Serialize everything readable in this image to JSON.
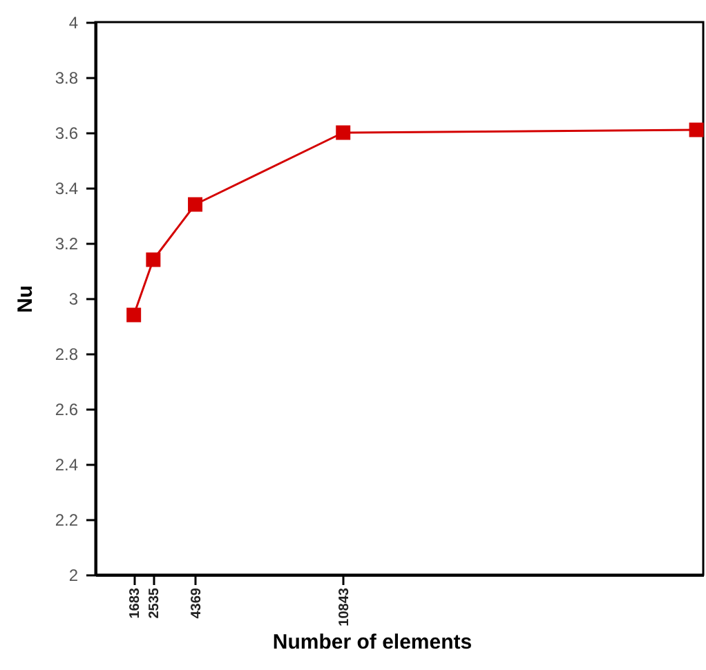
{
  "chart_data": {
    "type": "line",
    "xlabel": "Number of elements",
    "ylabel": "Nu",
    "x": [
      1683,
      2535,
      4369,
      10843,
      26300
    ],
    "series": [
      {
        "color": "#d40000",
        "values": [
          2.94,
          3.14,
          3.34,
          3.6,
          3.61
        ]
      }
    ],
    "xlim": [
      0,
      26600
    ],
    "xticks": [
      1683,
      2535,
      4369,
      10843
    ],
    "ylim": [
      2,
      4
    ],
    "yticks": [
      2,
      2.2,
      2.4,
      2.6,
      2.8,
      3,
      3.2,
      3.4,
      3.6,
      3.8,
      4
    ],
    "grid": false,
    "marker": "square",
    "line_style": "solid"
  }
}
